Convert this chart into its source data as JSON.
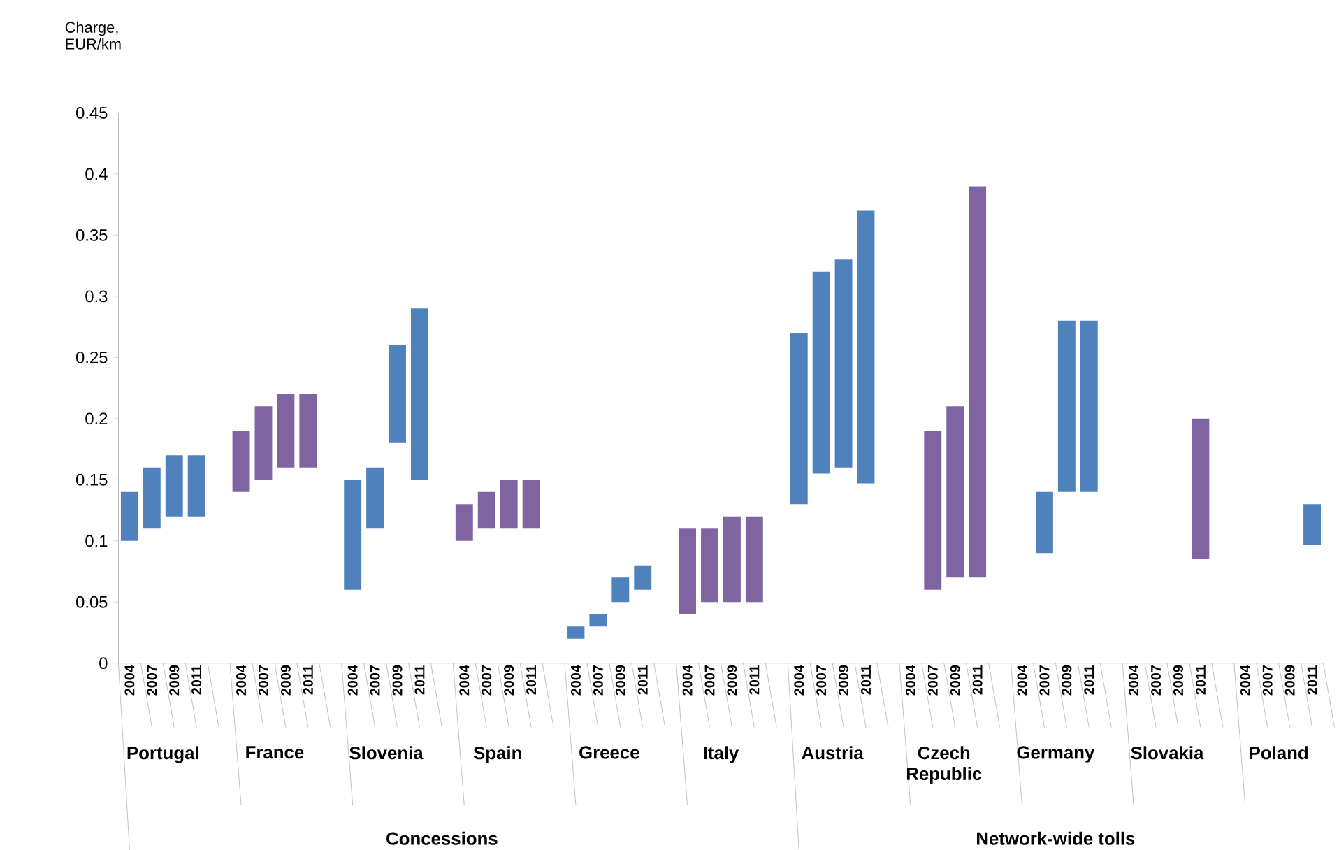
{
  "chart_data": {
    "type": "bar",
    "ylabel": "Charge, EUR/km",
    "categories": [
      "2004",
      "2007",
      "2009",
      "2011",
      null,
      "2004",
      "2007",
      "2009",
      "2011",
      null,
      "2004",
      "2007",
      "2009",
      "2011",
      null,
      "2004",
      "2007",
      "2009",
      "2011",
      null,
      "2004",
      "2007",
      "2009",
      "2011",
      null,
      "2004",
      "2007",
      "2009",
      "2011",
      null,
      "2004",
      "2007",
      "2009",
      "2011",
      null,
      "2004",
      "2007",
      "2009",
      "2011",
      null,
      "2004",
      "2007",
      "2009",
      "2011",
      null,
      "2004",
      "2007",
      "2009",
      "2011",
      null,
      "2004",
      "2007",
      "2009",
      "2011"
    ],
    "base": [
      0.1,
      0.11,
      0.12,
      0.12,
      null,
      0.14,
      0.15,
      0.16,
      0.16,
      null,
      0.06,
      0.11,
      0.18,
      0.15,
      null,
      0.1,
      0.11,
      0.11,
      0.11,
      null,
      0.02,
      0.03,
      0.05,
      0.06,
      null,
      0.04,
      0.05,
      0.05,
      0.05,
      null,
      0.13,
      0.155,
      0.16,
      0.147,
      null,
      null,
      0.06,
      0.07,
      0.07,
      null,
      null,
      0.09,
      0.14,
      0.14,
      null,
      null,
      null,
      null,
      0.085,
      null,
      null,
      null,
      null,
      0.097
    ],
    "values": [
      0.04,
      0.05,
      0.05,
      0.05,
      null,
      0.05,
      0.06,
      0.06,
      0.06,
      null,
      0.09,
      0.05,
      0.08,
      0.14,
      null,
      0.03,
      0.03,
      0.04,
      0.04,
      null,
      0.01,
      0.01,
      0.02,
      0.02,
      null,
      0.07,
      0.06,
      0.07,
      0.07,
      null,
      0.14,
      0.165,
      0.17,
      0.223,
      null,
      null,
      0.13,
      0.14,
      0.32,
      null,
      null,
      0.05,
      0.14,
      0.14,
      null,
      null,
      null,
      null,
      0.115,
      null,
      null,
      null,
      null,
      0.033
    ],
    "colors": [
      "#4f81bd",
      "#4f81bd",
      "#4f81bd",
      "#4f81bd",
      null,
      "#8064a2",
      "#8064a2",
      "#8064a2",
      "#8064a2",
      null,
      "#4f81bd",
      "#4f81bd",
      "#4f81bd",
      "#4f81bd",
      null,
      "#8064a2",
      "#8064a2",
      "#8064a2",
      "#8064a2",
      null,
      "#4f81bd",
      "#4f81bd",
      "#4f81bd",
      "#4f81bd",
      null,
      "#8064a2",
      "#8064a2",
      "#8064a2",
      "#8064a2",
      null,
      "#4f81bd",
      "#4f81bd",
      "#4f81bd",
      "#4f81bd",
      null,
      "#8064a2",
      "#8064a2",
      "#8064a2",
      "#8064a2",
      null,
      "#4f81bd",
      "#4f81bd",
      "#4f81bd",
      "#4f81bd",
      null,
      "#8064a2",
      "#8064a2",
      "#8064a2",
      "#8064a2",
      null,
      "#4f81bd",
      "#4f81bd",
      "#4f81bd",
      "#4f81bd"
    ],
    "ylim": [
      0,
      0.45
    ],
    "yticks": [
      0,
      0.05,
      0.1,
      0.15,
      0.2,
      0.25,
      0.3,
      0.35,
      0.4,
      0.45
    ],
    "annotations": [
      "Portugal",
      "France",
      "Slovenia",
      "Spain",
      "Greece",
      "Italy",
      "Austria",
      "Czech Republic",
      "Germany",
      "Slovakia",
      "Poland",
      "Concessions",
      "Network-wide tolls"
    ]
  }
}
